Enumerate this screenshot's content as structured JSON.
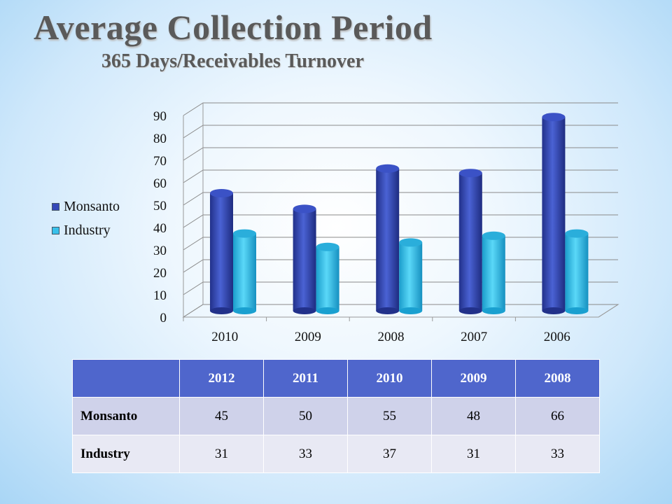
{
  "title": "Average Collection Period",
  "subtitle": "365 Days/Receivables Turnover",
  "chart_data": {
    "type": "bar",
    "title": "Average Collection Period",
    "subtitle": "365 Days/Receivables Turnover",
    "categories": [
      "2010",
      "2009",
      "2008",
      "2007",
      "2006"
    ],
    "series": [
      {
        "name": "Monsanto",
        "values": [
          55,
          48,
          66,
          64,
          89
        ],
        "color": "#3448b8"
      },
      {
        "name": "Industry",
        "values": [
          37,
          31,
          33,
          36,
          37
        ],
        "color": "#38c0ea"
      }
    ],
    "yticks": [
      "0",
      "10",
      "20",
      "30",
      "40",
      "50",
      "60",
      "70",
      "80",
      "90"
    ],
    "ylim": [
      0,
      90
    ],
    "grid": true,
    "legend_position": "left",
    "xlabel": "",
    "ylabel": ""
  },
  "table": {
    "headers": [
      "",
      "2012",
      "2011",
      "2010",
      "2009",
      "2008"
    ],
    "rows": [
      {
        "label": "Monsanto",
        "values": [
          "45",
          "50",
          "55",
          "48",
          "66"
        ]
      },
      {
        "label": "Industry",
        "values": [
          "31",
          "33",
          "37",
          "31",
          "33"
        ]
      }
    ]
  }
}
